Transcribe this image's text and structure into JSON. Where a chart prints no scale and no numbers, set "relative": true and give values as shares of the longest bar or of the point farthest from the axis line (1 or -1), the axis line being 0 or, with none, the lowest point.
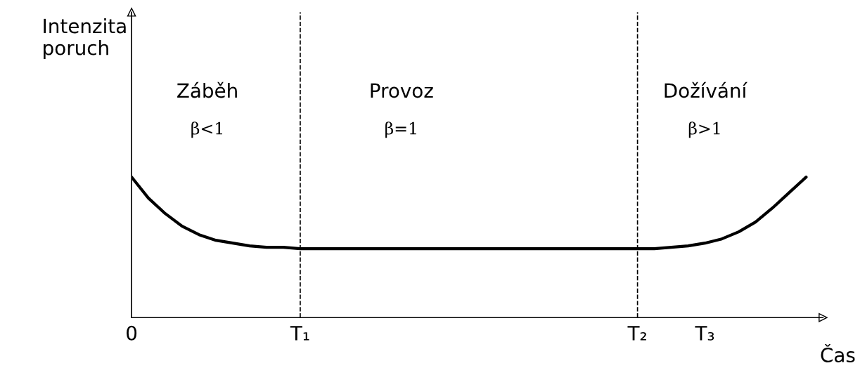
{
  "chart_data": {
    "type": "line",
    "relative": true,
    "xlabel": "Čas",
    "categories": [
      "0",
      null,
      null,
      null,
      null,
      null,
      null,
      null,
      null,
      null,
      "T₁",
      null,
      null,
      null,
      null,
      null,
      null,
      null,
      null,
      null,
      null,
      null,
      null,
      null,
      null,
      null,
      null,
      null,
      null,
      null,
      "T₂",
      null,
      null,
      null,
      "T₃",
      null,
      null,
      null,
      null,
      null,
      null
    ],
    "series": [
      {
        "color": "#000000",
        "values": [
          1.0,
          0.85,
          0.74,
          0.65,
          0.59,
          0.55,
          0.53,
          0.51,
          0.5,
          0.5,
          0.49,
          0.49,
          0.49,
          0.49,
          0.49,
          0.49,
          0.49,
          0.49,
          0.49,
          0.49,
          0.49,
          0.49,
          0.49,
          0.49,
          0.49,
          0.49,
          0.49,
          0.49,
          0.49,
          0.49,
          0.49,
          0.49,
          0.5,
          0.51,
          0.53,
          0.56,
          0.61,
          0.68,
          0.78,
          0.89,
          1.0
        ]
      }
    ],
    "ref_lines": [
      {
        "axis": "x",
        "value": "T₁",
        "color": "#000000",
        "line_style": "dashed"
      },
      {
        "axis": "x",
        "value": "T₂",
        "color": "#000000",
        "line_style": "dashed"
      }
    ],
    "annotations": [
      "Intenzita\nporuch",
      "Záběh",
      "β<1",
      "Provoz",
      "β=1",
      "Dožívání",
      "β>1"
    ],
    "grid": false,
    "marker": "none",
    "line_style": "solid"
  }
}
